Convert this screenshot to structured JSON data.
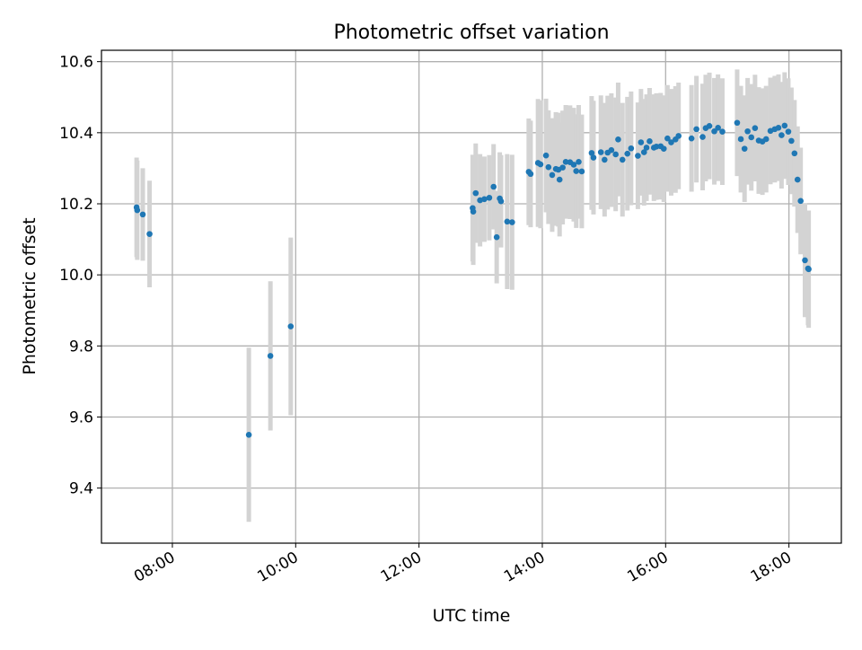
{
  "chart_data": {
    "type": "scatter",
    "title": "Photometric offset variation",
    "xlabel": "UTC time",
    "ylabel": "Photometric offset",
    "x_unit": "hours UTC",
    "xlim": [
      6.85,
      18.85
    ],
    "ylim": [
      9.245,
      10.632
    ],
    "x_ticks": [
      {
        "value": 8,
        "label": "08:00"
      },
      {
        "value": 10,
        "label": "10:00"
      },
      {
        "value": 12,
        "label": "12:00"
      },
      {
        "value": 14,
        "label": "14:00"
      },
      {
        "value": 16,
        "label": "16:00"
      },
      {
        "value": 18,
        "label": "18:00"
      }
    ],
    "y_ticks": [
      {
        "value": 9.4,
        "label": "9.4"
      },
      {
        "value": 9.6,
        "label": "9.6"
      },
      {
        "value": 9.8,
        "label": "9.8"
      },
      {
        "value": 10.0,
        "label": "10.0"
      },
      {
        "value": 10.2,
        "label": "10.2"
      },
      {
        "value": 10.4,
        "label": "10.4"
      },
      {
        "value": 10.6,
        "label": "10.6"
      }
    ],
    "grid": true,
    "legend": "none",
    "marker_color": "#1f77b4",
    "errorbar_color": "#d3d3d3",
    "series": [
      {
        "x": [
          7.42,
          7.43,
          7.52,
          7.63,
          9.24,
          9.59,
          9.92,
          12.87,
          12.88,
          12.92,
          12.99,
          13.06,
          13.14,
          13.21,
          13.26,
          13.31,
          13.33,
          13.43,
          13.51,
          13.78,
          13.81,
          13.93,
          13.97,
          14.06,
          14.1,
          14.16,
          14.22,
          14.26,
          14.28,
          14.33,
          14.38,
          14.45,
          14.51,
          14.55,
          14.59,
          14.64,
          14.8,
          14.83,
          14.95,
          15.01,
          15.06,
          15.12,
          15.19,
          15.23,
          15.3,
          15.38,
          15.44,
          15.55,
          15.6,
          15.65,
          15.69,
          15.74,
          15.81,
          15.85,
          15.92,
          15.97,
          16.03,
          16.09,
          16.16,
          16.21,
          16.42,
          16.5,
          16.6,
          16.65,
          16.71,
          16.79,
          16.85,
          16.92,
          17.16,
          17.22,
          17.28,
          17.33,
          17.39,
          17.45,
          17.51,
          17.57,
          17.63,
          17.7,
          17.77,
          17.83,
          17.88,
          17.93,
          17.99,
          18.04,
          18.09,
          18.14,
          18.19,
          18.26,
          18.31,
          18.32
        ],
        "y": [
          10.19,
          10.182,
          10.17,
          10.115,
          9.55,
          9.772,
          9.855,
          10.188,
          10.178,
          10.23,
          10.21,
          10.213,
          10.217,
          10.248,
          10.106,
          10.215,
          10.207,
          10.15,
          10.148,
          10.29,
          10.284,
          10.315,
          10.311,
          10.336,
          10.303,
          10.281,
          10.298,
          10.296,
          10.268,
          10.302,
          10.318,
          10.317,
          10.31,
          10.292,
          10.318,
          10.291,
          10.343,
          10.33,
          10.345,
          10.324,
          10.344,
          10.351,
          10.339,
          10.381,
          10.324,
          10.341,
          10.356,
          10.335,
          10.373,
          10.345,
          10.358,
          10.376,
          10.358,
          10.361,
          10.362,
          10.355,
          10.384,
          10.373,
          10.381,
          10.391,
          10.384,
          10.41,
          10.388,
          10.413,
          10.419,
          10.404,
          10.414,
          10.403,
          10.428,
          10.382,
          10.355,
          10.404,
          10.387,
          10.413,
          10.378,
          10.375,
          10.382,
          10.405,
          10.41,
          10.414,
          10.393,
          10.42,
          10.403,
          10.377,
          10.342,
          10.268,
          10.208,
          10.041,
          10.018,
          10.016
        ],
        "yerr": [
          0.14,
          0.14,
          0.13,
          0.15,
          0.245,
          0.21,
          0.25,
          0.15,
          0.15,
          0.14,
          0.13,
          0.12,
          0.12,
          0.12,
          0.13,
          0.13,
          0.13,
          0.19,
          0.19,
          0.15,
          0.15,
          0.18,
          0.18,
          0.16,
          0.16,
          0.16,
          0.16,
          0.16,
          0.16,
          0.16,
          0.16,
          0.16,
          0.16,
          0.16,
          0.16,
          0.16,
          0.16,
          0.16,
          0.16,
          0.16,
          0.16,
          0.16,
          0.16,
          0.16,
          0.16,
          0.16,
          0.16,
          0.15,
          0.15,
          0.15,
          0.15,
          0.15,
          0.15,
          0.15,
          0.15,
          0.15,
          0.15,
          0.15,
          0.15,
          0.15,
          0.15,
          0.15,
          0.15,
          0.15,
          0.15,
          0.15,
          0.15,
          0.15,
          0.15,
          0.15,
          0.15,
          0.15,
          0.15,
          0.15,
          0.15,
          0.15,
          0.15,
          0.15,
          0.15,
          0.15,
          0.15,
          0.15,
          0.15,
          0.15,
          0.15,
          0.15,
          0.15,
          0.16,
          0.16,
          0.165
        ]
      }
    ]
  }
}
